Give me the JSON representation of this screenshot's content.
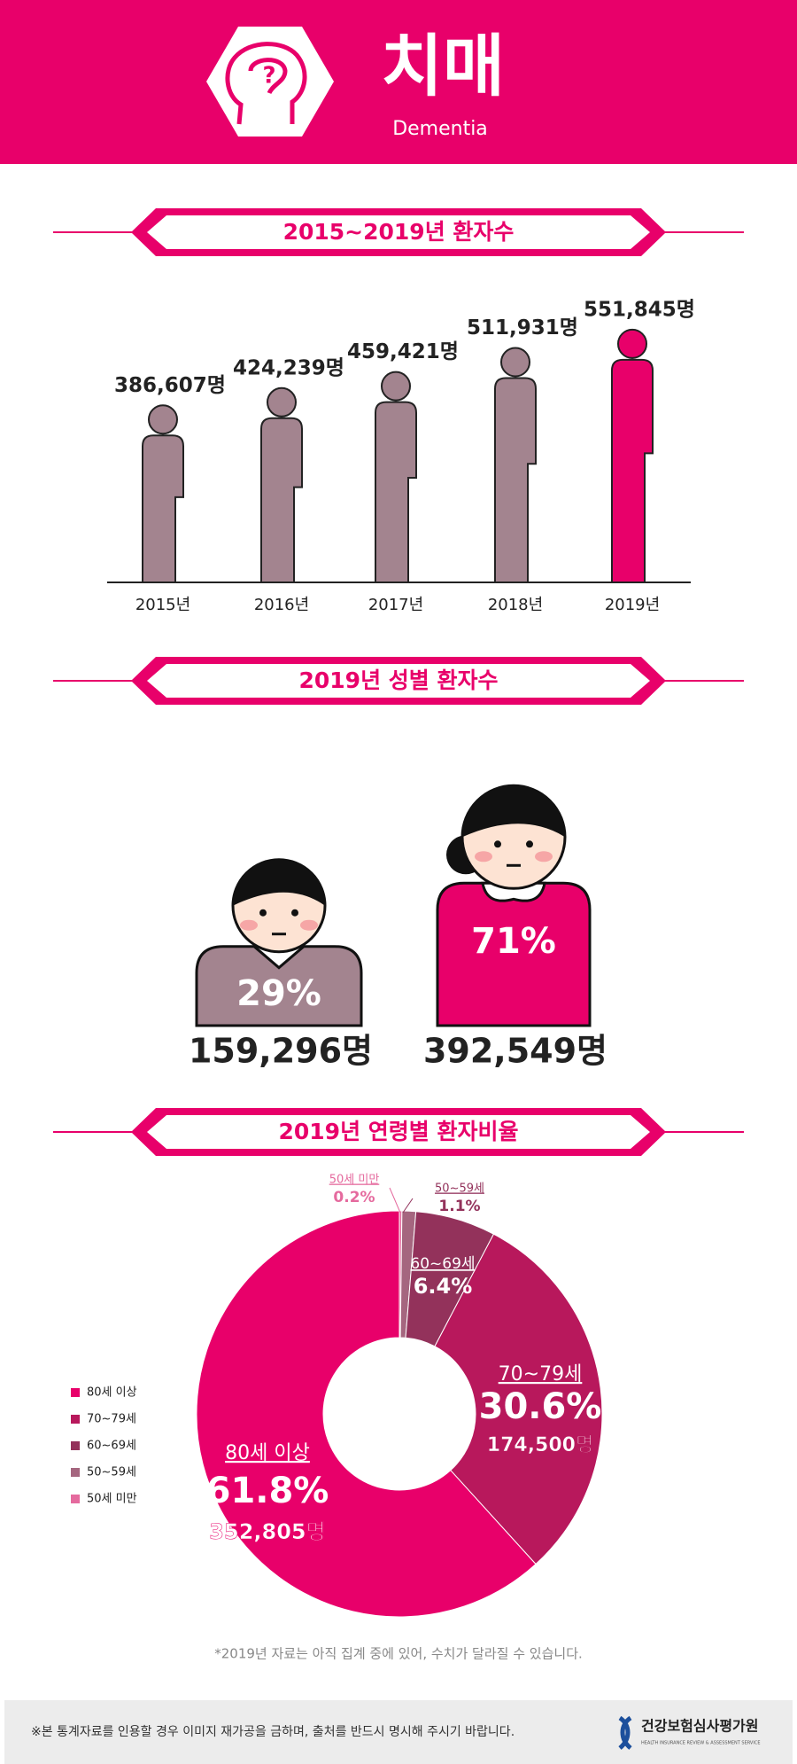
{
  "header": {
    "title": "치매",
    "subtitle": "Dementia"
  },
  "chart_data": [
    {
      "type": "pictograph",
      "title": "2015~2019년 환자수",
      "categories": [
        "2015년",
        "2016년",
        "2017년",
        "2018년",
        "2019년"
      ],
      "values": [
        386607,
        424239,
        459421,
        511931,
        551845
      ],
      "value_labels": [
        "386,607명",
        "424,239명",
        "459,421명",
        "511,931명",
        "551,845명"
      ],
      "colors": [
        "#a3848f",
        "#a3848f",
        "#a3848f",
        "#a3848f",
        "#e8006a"
      ],
      "ylim": [
        0,
        600000
      ]
    },
    {
      "type": "figures",
      "title": "2019년 성별 환자수",
      "values": [
        29,
        71
      ],
      "value_labels": [
        "29%",
        "71%"
      ],
      "counts": [
        159296,
        392549
      ],
      "count_labels": [
        "159,296명",
        "392,549명"
      ],
      "colors": [
        "#a3848f",
        "#e8006a"
      ]
    },
    {
      "type": "donut",
      "title": "2019년 연령별 환자비율",
      "categories": [
        "80세 이상",
        "70~79세",
        "60~69세",
        "50~59세",
        "50세 미만"
      ],
      "values": [
        61.8,
        30.6,
        6.4,
        1.1,
        0.2
      ],
      "value_labels": [
        "61.8%",
        "30.6%",
        "6.4%",
        "1.1%",
        "0.2%"
      ],
      "counts": [
        352805,
        174500,
        null,
        null,
        null
      ],
      "count_labels": [
        "352,805명",
        "174,500명",
        null,
        null,
        null
      ],
      "colors": [
        "#e8006a",
        "#b8185c",
        "#93325b",
        "#a5667f",
        "#e56a9e"
      ],
      "legend": "left",
      "note": "*2019년 자료는 아직 집계 중에 있어, 수치가 달라질 수 있습니다."
    }
  ],
  "footer": {
    "notice": "※본 통계자료를 인용할 경우 이미지 재가공을 금하며, 출처를 반드시 명시해 주시기 바랍니다.",
    "org": "건강보험심사평가원",
    "org_en": "HEALTH INSURANCE REVIEW & ASSESSMENT SERVICE"
  }
}
